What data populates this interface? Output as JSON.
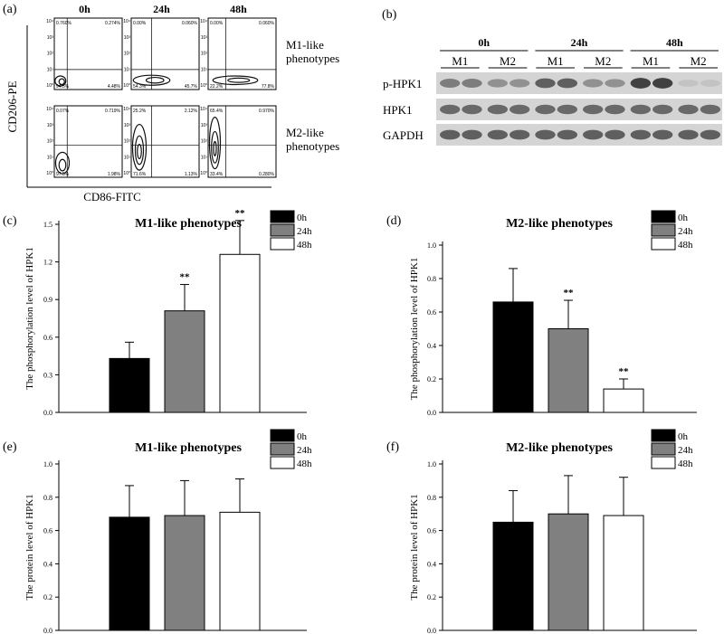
{
  "panel_a": {
    "label": "(a)",
    "columns": [
      "0h",
      "24h",
      "48h"
    ],
    "rows": [
      "M1-like\nphenotypes",
      "M2-like\nphenotypes"
    ],
    "y_axis_label": "CD206-PE",
    "x_axis_label": "CD86-FITC",
    "axis_ticks": [
      "10⁰",
      "10¹",
      "10²",
      "10³",
      "10⁴"
    ],
    "quadrants": [
      [
        {
          "ul": "0.760%",
          "ur": "0.274%",
          "ll": "94.5%",
          "lr": "4.48%"
        },
        {
          "ul": "0.00%",
          "ur": "0.060%",
          "ll": "54.3%",
          "lr": "45.7%"
        },
        {
          "ul": "0.00%",
          "ur": "0.060%",
          "ll": "22.2%",
          "lr": "77.8%"
        }
      ],
      [
        {
          "ul": "0.07%",
          "ur": "0.719%",
          "ll": "97.5%",
          "lr": "1.98%"
        },
        {
          "ul": "25.2%",
          "ur": "2.12%",
          "ll": "71.6%",
          "lr": "1.13%"
        },
        {
          "ul": "65.4%",
          "ur": "0.970%",
          "ll": "33.4%",
          "lr": "0.280%"
        }
      ]
    ]
  },
  "panel_b": {
    "label": "(b)",
    "timepoints": [
      "0h",
      "24h",
      "48h"
    ],
    "lanes": [
      "M1",
      "M2",
      "M1",
      "M2",
      "M1",
      "M2"
    ],
    "proteins": [
      "p-HPK1",
      "HPK1",
      "GAPDH"
    ]
  },
  "chart_data": [
    {
      "type": "bar",
      "label": "(c)",
      "title": "M1-like phenotypes",
      "ylabel": "The phosphorylation level of HPK1",
      "categories": [
        "0h",
        "24h",
        "48h"
      ],
      "values": [
        0.43,
        0.81,
        1.26
      ],
      "errors": [
        0.13,
        0.21,
        0.27
      ],
      "sig": [
        "",
        "**",
        "**"
      ],
      "ylim": [
        0,
        1.5
      ],
      "ytick_values": [
        0.0,
        0.3,
        0.6,
        0.9,
        1.2,
        1.5
      ],
      "ytick_labels": [
        "0.0",
        "0.3",
        "0.6",
        "0.9",
        "1.2",
        "1.5"
      ],
      "legend": [
        "0h",
        "24h",
        "48h"
      ],
      "colors": [
        "#000000",
        "#808080",
        "#ffffff"
      ]
    },
    {
      "type": "bar",
      "label": "(d)",
      "title": "M2-like phenotypes",
      "ylabel": "The phosphorylation level of HPK1",
      "categories": [
        "0h",
        "24h",
        "48h"
      ],
      "values": [
        0.66,
        0.5,
        0.14
      ],
      "errors": [
        0.2,
        0.17,
        0.06
      ],
      "sig": [
        "",
        "**",
        "**"
      ],
      "ylim": [
        0,
        1.0
      ],
      "ytick_values": [
        0.0,
        0.2,
        0.4,
        0.6,
        0.8,
        1.0
      ],
      "ytick_labels": [
        "0.0",
        "0.2",
        "0.4",
        "0.6",
        "0.8",
        "1.0"
      ],
      "legend": [
        "0h",
        "24h",
        "48h"
      ],
      "colors": [
        "#000000",
        "#808080",
        "#ffffff"
      ]
    },
    {
      "type": "bar",
      "label": "(e)",
      "title": "M1-like phenotypes",
      "ylabel": "The protein level of HPK1",
      "categories": [
        "0h",
        "24h",
        "48h"
      ],
      "values": [
        0.68,
        0.69,
        0.71
      ],
      "errors": [
        0.19,
        0.21,
        0.2
      ],
      "sig": [
        "",
        "",
        ""
      ],
      "ylim": [
        0,
        1.0
      ],
      "ytick_values": [
        0.0,
        0.2,
        0.4,
        0.6,
        0.8,
        1.0
      ],
      "ytick_labels": [
        "0.0",
        "0.2",
        "0.4",
        "0.6",
        "0.8",
        "1.0"
      ],
      "legend": [
        "0h",
        "24h",
        "48h"
      ],
      "colors": [
        "#000000",
        "#808080",
        "#ffffff"
      ]
    },
    {
      "type": "bar",
      "label": "(f)",
      "title": "M2-like phenotypes",
      "ylabel": "The protein level of HPK1",
      "categories": [
        "0h",
        "24h",
        "48h"
      ],
      "values": [
        0.65,
        0.7,
        0.69
      ],
      "errors": [
        0.19,
        0.23,
        0.23
      ],
      "sig": [
        "",
        "",
        ""
      ],
      "ylim": [
        0,
        1.0
      ],
      "ytick_values": [
        0.0,
        0.2,
        0.4,
        0.6,
        0.8,
        1.0
      ],
      "ytick_labels": [
        "0.0",
        "0.2",
        "0.4",
        "0.6",
        "0.8",
        "1.0"
      ],
      "legend": [
        "0h",
        "24h",
        "48h"
      ],
      "colors": [
        "#000000",
        "#808080",
        "#ffffff"
      ]
    }
  ]
}
